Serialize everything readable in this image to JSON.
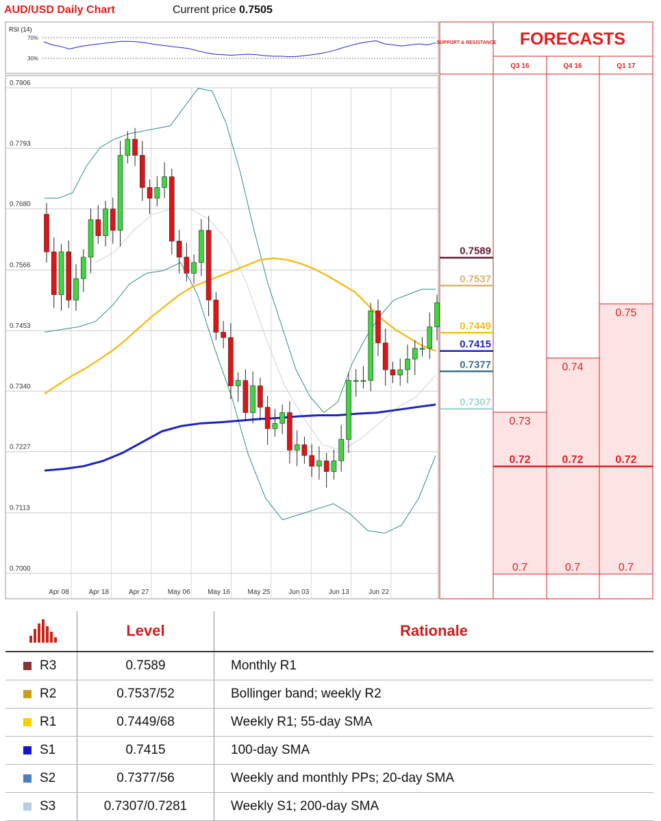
{
  "header": {
    "title": "AUD/USD Daily Chart",
    "price_label": "Current price",
    "price_value": "0.7505"
  },
  "rsi": {
    "label": "RSI (14)",
    "upper_label": "70%",
    "lower_label": "30%",
    "values": [
      62,
      56,
      53,
      48,
      52,
      55,
      57,
      59,
      61,
      63,
      63,
      62,
      60,
      57,
      55,
      53,
      51,
      49,
      45,
      41,
      38,
      37,
      36,
      37,
      38,
      37,
      35,
      34,
      34,
      33,
      34,
      36,
      38,
      41,
      45,
      50,
      55,
      59,
      62,
      64,
      58,
      56,
      54,
      56,
      58,
      56,
      60
    ]
  },
  "forecast_panel": {
    "title": "FORECASTS",
    "sr_label": "SUPPORT & RESISTANCE",
    "quarters": [
      "Q3 16",
      "Q4 16",
      "Q1 17"
    ],
    "forecast_values": [
      {
        "quarter": "Q3 16",
        "high": "0.73",
        "mid": "0.72",
        "low": "0.7",
        "high_value": 0.73
      },
      {
        "quarter": "Q4 16",
        "high": "0.74",
        "mid": "0.72",
        "low": "0.7",
        "high_value": 0.74
      },
      {
        "quarter": "Q1 17",
        "high": "0.75",
        "mid": "0.72",
        "low": "0.7",
        "high_value": 0.75
      }
    ],
    "levels": [
      {
        "label": "0.7589",
        "value": 0.7589,
        "color": "#5e1a2c"
      },
      {
        "label": "0.7537",
        "value": 0.7537,
        "color": "#d9b36b"
      },
      {
        "label": "0.7449",
        "value": 0.7449,
        "color": "#f2c01a"
      },
      {
        "label": "0.7415",
        "value": 0.7415,
        "color": "#1a20c8"
      },
      {
        "label": "0.7377",
        "value": 0.7377,
        "color": "#3a6e86"
      },
      {
        "label": "0.7307",
        "value": 0.7307,
        "color": "#a6d4d4"
      }
    ]
  },
  "chart_data": {
    "type": "candlestick",
    "pair": "AUD/USD",
    "ylim": [
      0.7,
      0.7906
    ],
    "y_ticks": [
      "0.7906",
      "0.7793",
      "0.7680",
      "0.7566",
      "0.7453",
      "0.7340",
      "0.7227",
      "0.7113",
      "0.7000"
    ],
    "x_ticks": [
      "Apr 08",
      "Apr 18",
      "Apr 27",
      "May 06",
      "May 16",
      "May 25",
      "Jun 03",
      "Jun 13",
      "Jun 22"
    ],
    "closes": [
      0.767,
      0.76,
      0.752,
      0.76,
      0.751,
      0.755,
      0.759,
      0.766,
      0.763,
      0.768,
      0.764,
      0.778,
      0.781,
      0.778,
      0.772,
      0.77,
      0.772,
      0.774,
      0.762,
      0.759,
      0.756,
      0.758,
      0.764,
      0.751,
      0.745,
      0.744,
      0.735,
      0.736,
      0.73,
      0.735,
      0.731,
      0.727,
      0.728,
      0.73,
      0.723,
      0.724,
      0.722,
      0.72,
      0.721,
      0.719,
      0.721,
      0.725,
      0.736,
      0.736,
      0.736,
      0.749,
      0.743,
      0.738,
      0.737,
      0.738,
      0.74,
      0.742,
      0.742,
      0.746,
      0.7505
    ],
    "sma_55": [
      0.7335,
      0.7352,
      0.7368,
      0.7382,
      0.7398,
      0.7415,
      0.7435,
      0.7458,
      0.748,
      0.75,
      0.752,
      0.7535,
      0.7545,
      0.7555,
      0.7565,
      0.7575,
      0.7585,
      0.7588,
      0.7585,
      0.7578,
      0.7568,
      0.7555,
      0.754,
      0.7525,
      0.75,
      0.7475,
      0.7455,
      0.744,
      0.7425,
      0.7415
    ],
    "sma_100": [
      0.7192,
      0.7195,
      0.72,
      0.721,
      0.7225,
      0.7245,
      0.7265,
      0.7275,
      0.728,
      0.7282,
      0.7285,
      0.7288,
      0.729,
      0.7293,
      0.7295,
      0.7295,
      0.7298,
      0.73,
      0.7305,
      0.731,
      0.7315
    ],
    "bollinger_upper": [
      0.77,
      0.77,
      0.771,
      0.776,
      0.7795,
      0.781,
      0.782,
      0.7825,
      0.783,
      0.7835,
      0.787,
      0.7905,
      0.79,
      0.784,
      0.775,
      0.764,
      0.754,
      0.746,
      0.738,
      0.733,
      0.73,
      0.732,
      0.739,
      0.744,
      0.748,
      0.751,
      0.752,
      0.753,
      0.753
    ],
    "bollinger_lower": [
      0.745,
      0.7455,
      0.746,
      0.747,
      0.75,
      0.754,
      0.756,
      0.7565,
      0.758,
      0.752,
      0.742,
      0.733,
      0.722,
      0.714,
      0.71,
      0.711,
      0.712,
      0.713,
      0.711,
      0.708,
      0.7075,
      0.709,
      0.714,
      0.722
    ],
    "bollinger_mid": [
      0.758,
      0.76,
      0.764,
      0.767,
      0.768,
      0.768,
      0.766,
      0.762,
      0.754,
      0.744,
      0.735,
      0.729,
      0.724,
      0.723,
      0.725,
      0.728,
      0.731,
      0.733,
      0.737
    ]
  },
  "levels_table": {
    "headers": {
      "level": "Level",
      "rationale": "Rationale"
    },
    "rows": [
      {
        "name": "R3",
        "level": "0.7589",
        "rationale": "Monthly R1",
        "color": "#8b3033"
      },
      {
        "name": "R2",
        "level": "0.7537/52",
        "rationale": "Bollinger band; weekly R2",
        "color": "#c9a018"
      },
      {
        "name": "R1",
        "level": "0.7449/68",
        "rationale": "Weekly R1; 55-day SMA",
        "color": "#f7cf00"
      },
      {
        "name": "S1",
        "level": "0.7415",
        "rationale": "100-day SMA",
        "color": "#1216c8"
      },
      {
        "name": "S2",
        "level": "0.7377/56",
        "rationale": "Weekly and monthly PPs; 20-day SMA",
        "color": "#4b7fbf"
      },
      {
        "name": "S3",
        "level": "0.7307/0.7281",
        "rationale": "Weekly S1; 200-day SMA",
        "color": "#b8cde6"
      }
    ]
  }
}
